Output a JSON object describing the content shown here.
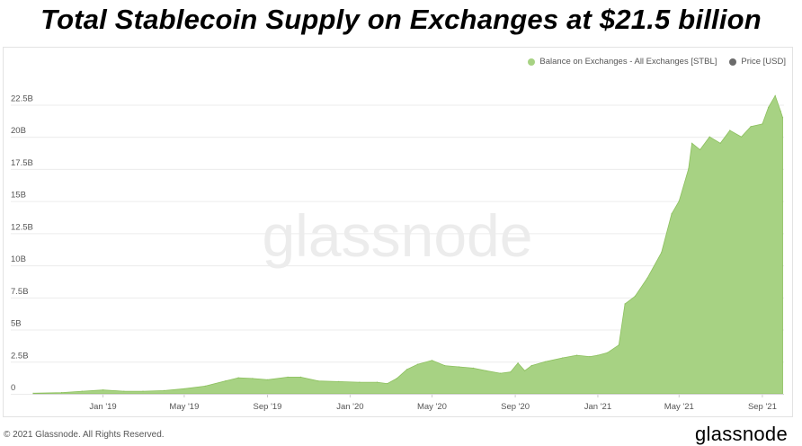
{
  "headline": "Total Stablecoin Supply on Exchanges at $21.5 billion",
  "watermark": "glassnode",
  "footer": {
    "copyright": "© 2021 Glassnode. All Rights Reserved.",
    "brand": "glassnode"
  },
  "colors": {
    "area_fill": "#a7d283",
    "area_line": "#8cc05e",
    "price_dot": "#6b6b6b",
    "grid": "#ececec",
    "text": "#555555"
  },
  "chart_data": {
    "type": "area",
    "y_tick_labels": [
      "0",
      "2.5B",
      "5B",
      "7.5B",
      "10B",
      "12.5B",
      "15B",
      "17.5B",
      "20B",
      "22.5B"
    ],
    "y_tick_values": [
      0,
      2.5,
      5,
      7.5,
      10,
      12.5,
      15,
      17.5,
      20,
      22.5
    ],
    "x_tick_labels": [
      "Jan '19",
      "May '19",
      "Sep '19",
      "Jan '20",
      "May '20",
      "Sep '20",
      "Jan '21",
      "May '21",
      "Sep '21"
    ],
    "x_tick_dates": [
      "2019-01-01",
      "2019-05-01",
      "2019-09-01",
      "2020-01-01",
      "2020-05-01",
      "2020-09-01",
      "2021-01-01",
      "2021-05-01",
      "2021-09-01"
    ],
    "xlim": [
      "2018-09-20",
      "2021-10-03"
    ],
    "ylim": [
      0,
      24
    ],
    "grid": true,
    "legend_position": "top-right",
    "series": [
      {
        "name": "Balance on Exchanges - All Exchanges [STBL]",
        "unit": "USD billion",
        "points": [
          [
            "2018-09-20",
            0.05
          ],
          [
            "2018-11-01",
            0.1
          ],
          [
            "2018-12-01",
            0.2
          ],
          [
            "2019-01-01",
            0.3
          ],
          [
            "2019-02-01",
            0.2
          ],
          [
            "2019-03-01",
            0.2
          ],
          [
            "2019-04-01",
            0.25
          ],
          [
            "2019-05-01",
            0.4
          ],
          [
            "2019-06-01",
            0.6
          ],
          [
            "2019-07-01",
            1.0
          ],
          [
            "2019-07-20",
            1.25
          ],
          [
            "2019-08-10",
            1.2
          ],
          [
            "2019-09-01",
            1.1
          ],
          [
            "2019-10-01",
            1.3
          ],
          [
            "2019-10-20",
            1.3
          ],
          [
            "2019-11-15",
            1.0
          ],
          [
            "2019-12-15",
            0.95
          ],
          [
            "2020-01-15",
            0.9
          ],
          [
            "2020-02-10",
            0.9
          ],
          [
            "2020-02-25",
            0.8
          ],
          [
            "2020-03-10",
            1.2
          ],
          [
            "2020-03-25",
            1.9
          ],
          [
            "2020-04-10",
            2.3
          ],
          [
            "2020-05-01",
            2.6
          ],
          [
            "2020-05-20",
            2.2
          ],
          [
            "2020-06-10",
            2.1
          ],
          [
            "2020-07-01",
            2.0
          ],
          [
            "2020-07-20",
            1.8
          ],
          [
            "2020-08-10",
            1.6
          ],
          [
            "2020-08-25",
            1.7
          ],
          [
            "2020-09-05",
            2.4
          ],
          [
            "2020-09-15",
            1.8
          ],
          [
            "2020-09-25",
            2.2
          ],
          [
            "2020-10-15",
            2.5
          ],
          [
            "2020-11-10",
            2.8
          ],
          [
            "2020-12-01",
            3.0
          ],
          [
            "2020-12-20",
            2.9
          ],
          [
            "2021-01-01",
            3.0
          ],
          [
            "2021-01-15",
            3.2
          ],
          [
            "2021-02-01",
            3.8
          ],
          [
            "2021-02-10",
            7.0
          ],
          [
            "2021-02-25",
            7.6
          ],
          [
            "2021-03-15",
            9.0
          ],
          [
            "2021-04-05",
            11.0
          ],
          [
            "2021-04-20",
            14.0
          ],
          [
            "2021-05-01",
            15.0
          ],
          [
            "2021-05-15",
            17.5
          ],
          [
            "2021-05-20",
            19.5
          ],
          [
            "2021-06-01",
            19.0
          ],
          [
            "2021-06-15",
            20.0
          ],
          [
            "2021-07-01",
            19.5
          ],
          [
            "2021-07-15",
            20.5
          ],
          [
            "2021-08-01",
            20.0
          ],
          [
            "2021-08-15",
            20.8
          ],
          [
            "2021-09-01",
            21.0
          ],
          [
            "2021-09-10",
            22.3
          ],
          [
            "2021-09-20",
            23.2
          ],
          [
            "2021-09-28",
            22.0
          ],
          [
            "2021-10-01",
            21.5
          ]
        ]
      },
      {
        "name": "Price [USD]"
      }
    ]
  }
}
